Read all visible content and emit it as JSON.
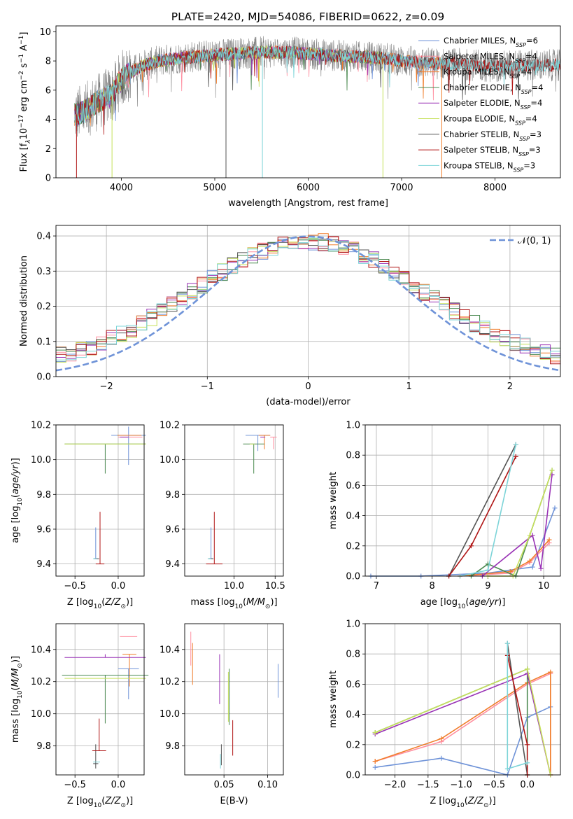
{
  "figure_title": "PLATE=2420, MJD=54086, FIBERID=0622, z=0.09",
  "palette": {
    "chabrier_miles": "#6f93d8",
    "salpeter_miles": "#ff8fa0",
    "kroupa_miles": "#f07d2a",
    "chabrier_elodie": "#4b8a50",
    "salpeter_elodie": "#9932b5",
    "kroupa_elodie": "#c6e05a",
    "chabrier_stelib": "#555555",
    "salpeter_stelib": "#b01515",
    "kroupa_stelib": "#7dd4d8",
    "grid": "#b0b0b0",
    "spectrum_data": "#808080"
  },
  "chart_data": [
    {
      "id": "spectrum",
      "type": "line",
      "title": "PLATE=2420, MJD=54086, FIBERID=0622, z=0.09",
      "xlabel": "wavelength [Angstrom, rest frame]",
      "ylabel": "Flux [f_λ10^-17 erg cm^-2 s^-1 A^-1]",
      "xlim": [
        3300,
        8700
      ],
      "ylim": [
        0,
        10.4
      ],
      "xticks": [
        "4000",
        "5000",
        "6000",
        "7000",
        "8000"
      ],
      "yticks": [
        "0",
        "2",
        "4",
        "6",
        "8",
        "10"
      ],
      "grid": false,
      "legend_position": "right",
      "legend": [
        {
          "name": "Chabrier MILES, N",
          "sub": "SSP",
          "suffix": "=6",
          "key": "chabrier_miles"
        },
        {
          "name": "Salpeter MILES, N",
          "sub": "SSP",
          "suffix": "=4",
          "key": "salpeter_miles"
        },
        {
          "name": "Kroupa MILES, N",
          "sub": "SSP",
          "suffix": "=4",
          "key": "kroupa_miles"
        },
        {
          "name": "Chabrier ELODIE, N",
          "sub": "SSP",
          "suffix": "=4",
          "key": "chabrier_elodie"
        },
        {
          "name": "Salpeter ELODIE, N",
          "sub": "SSP",
          "suffix": "=4",
          "key": "salpeter_elodie"
        },
        {
          "name": "Kroupa ELODIE, N",
          "sub": "SSP",
          "suffix": "=4",
          "key": "kroupa_elodie"
        },
        {
          "name": "Chabrier STELIB, N",
          "sub": "SSP",
          "suffix": "=3",
          "key": "chabrier_stelib"
        },
        {
          "name": "Salpeter STELIB, N",
          "sub": "SSP",
          "suffix": "=3",
          "key": "salpeter_stelib"
        },
        {
          "name": "Kroupa STELIB, N",
          "sub": "SSP",
          "suffix": "=3",
          "key": "kroupa_stelib"
        }
      ],
      "continuum": {
        "x": [
          3500,
          3600,
          3700,
          3800,
          3900,
          4000,
          4100,
          4200,
          4400,
          4600,
          4800,
          5000,
          5200,
          5500,
          5800,
          6000,
          6200,
          6500,
          6800,
          7000,
          7200,
          7400,
          7600,
          7800,
          8000,
          8200,
          8400
        ],
        "y": [
          4.3,
          4.5,
          5.0,
          5.4,
          5.7,
          6.8,
          7.2,
          7.6,
          8.0,
          8.2,
          8.3,
          8.4,
          8.5,
          8.6,
          8.6,
          8.5,
          8.4,
          8.3,
          8.2,
          8.0,
          7.9,
          7.8,
          7.8,
          7.7,
          7.6,
          7.7,
          7.7
        ]
      },
      "model_wavelength_max": {
        "miles": 7430,
        "elodie": 6800,
        "stelib": 8750
      }
    },
    {
      "id": "residuals",
      "type": "area",
      "xlabel": "(data-model)/error",
      "ylabel": "Normed distribution",
      "xlim": [
        -2.5,
        2.5
      ],
      "ylim": [
        0,
        0.43
      ],
      "xticks": [
        "−2",
        "−1",
        "0",
        "1",
        "2"
      ],
      "yticks": [
        "0.0",
        "0.1",
        "0.2",
        "0.3",
        "0.4"
      ],
      "grid": true,
      "legend_position": "top-right",
      "legend_label": "𝒩(0, 1)",
      "bin_width": 0.1,
      "bin_start": -2.5,
      "reference_curve": {
        "name": "𝒩(0, 1)",
        "key": "chabrier_miles",
        "mean": 0,
        "sigma": 1
      }
    },
    {
      "id": "age_vs_Z",
      "type": "scatter",
      "xlabel": "Z [log10(Z/Z⊙)]",
      "ylabel": "age [log10(age/yr)]",
      "xlim": [
        -0.72,
        0.3
      ],
      "ylim": [
        9.33,
        10.2
      ],
      "xticks": [
        "−0.5",
        "0.0"
      ],
      "yticks": [
        "9.4",
        "9.6",
        "9.8",
        "10.0",
        "10.2"
      ],
      "grid": true,
      "points": [
        {
          "key": "chabrier_miles",
          "x": -0.26,
          "y": 9.43,
          "xerr": 0.02,
          "yerr": [
            0.0,
            0.18
          ]
        },
        {
          "key": "chabrier_miles",
          "x": 0.12,
          "y": 10.14,
          "xerr": 0.2,
          "yerr": [
            0.17,
            0.05
          ]
        },
        {
          "key": "salpeter_miles",
          "x": 0.14,
          "y": 10.13,
          "xerr": 0.14,
          "yerr": [
            0.0,
            0.0
          ]
        },
        {
          "key": "kroupa_miles",
          "x": 0.13,
          "y": 10.14,
          "xerr": 0.14,
          "yerr": [
            0.0,
            0.0
          ]
        },
        {
          "key": "chabrier_elodie",
          "x": -0.15,
          "y": 10.09,
          "xerr": 0.47,
          "yerr": [
            0.17,
            0.0
          ]
        },
        {
          "key": "salpeter_elodie",
          "x": 0.07,
          "y": 10.13,
          "xerr": 0.05,
          "yerr": [
            0.0,
            0.0
          ]
        },
        {
          "key": "kroupa_elodie",
          "x": -0.15,
          "y": 10.09,
          "xerr": 0.47,
          "yerr": [
            0.0,
            0.0
          ]
        },
        {
          "key": "chabrier_stelib",
          "x": -0.25,
          "y": 9.43,
          "xerr": 0.03,
          "yerr": [
            0.0,
            0.0
          ]
        },
        {
          "key": "salpeter_stelib",
          "x": -0.21,
          "y": 9.4,
          "xerr": 0.05,
          "yerr": [
            0.0,
            0.3
          ]
        },
        {
          "key": "kroupa_stelib",
          "x": -0.27,
          "y": 9.43,
          "xerr": 0.02,
          "yerr": [
            0.0,
            0.0
          ]
        }
      ]
    },
    {
      "id": "age_vs_mass",
      "type": "scatter",
      "xlabel": "mass [log10(M/M⊙)]",
      "ylabel": "",
      "xlim": [
        9.4,
        10.6
      ],
      "ylim": [
        9.33,
        10.2
      ],
      "xticks": [
        "10.0",
        "10.5"
      ],
      "yticks": [
        "9.4",
        "9.6",
        "9.8",
        "10.0",
        "10.2"
      ],
      "grid": true,
      "points": [
        {
          "key": "chabrier_miles",
          "x": 9.72,
          "y": 9.43,
          "xerr": 0.02,
          "yerr": [
            0.0,
            0.18
          ]
        },
        {
          "key": "chabrier_miles",
          "x": 10.29,
          "y": 10.14,
          "xerr": 0.15,
          "yerr": [
            0.09,
            0.0
          ]
        },
        {
          "key": "salpeter_miles",
          "x": 10.48,
          "y": 10.13,
          "xerr": 0.04,
          "yerr": [
            0.07,
            0.0
          ]
        },
        {
          "key": "kroupa_miles",
          "x": 10.37,
          "y": 10.14,
          "xerr": 0.07,
          "yerr": [
            0.08,
            0.0
          ]
        },
        {
          "key": "chabrier_elodie",
          "x": 10.24,
          "y": 10.09,
          "xerr": 0.13,
          "yerr": [
            0.17,
            0.0
          ]
        },
        {
          "key": "salpeter_elodie",
          "x": 10.35,
          "y": 10.13,
          "xerr": 0.03,
          "yerr": [
            0.0,
            0.0
          ]
        },
        {
          "key": "kroupa_elodie",
          "x": 10.22,
          "y": 10.09,
          "xerr": 0.03,
          "yerr": [
            0.0,
            0.0
          ]
        },
        {
          "key": "chabrier_stelib",
          "x": 9.72,
          "y": 9.43,
          "xerr": 0.03,
          "yerr": [
            0.0,
            0.0
          ]
        },
        {
          "key": "salpeter_stelib",
          "x": 9.76,
          "y": 9.4,
          "xerr": 0.1,
          "yerr": [
            0.0,
            0.3
          ]
        },
        {
          "key": "kroupa_stelib",
          "x": 9.7,
          "y": 9.43,
          "xerr": 0.02,
          "yerr": [
            0.0,
            0.0
          ]
        }
      ]
    },
    {
      "id": "massweight_vs_age",
      "type": "line",
      "xlabel": "age [log10(age/yr)]",
      "ylabel": "mass weight",
      "xlim": [
        6.8,
        10.3
      ],
      "ylim": [
        0.0,
        1.0
      ],
      "xticks": [
        "7",
        "8",
        "9",
        "10"
      ],
      "yticks": [
        "0.0",
        "0.2",
        "0.4",
        "0.6",
        "0.8",
        "1.0"
      ],
      "grid": true,
      "series": [
        {
          "key": "chabrier_miles",
          "x": [
            6.9,
            7.8,
            9.0,
            9.8,
            10.2
          ],
          "y": [
            0.0,
            0.0,
            0.02,
            0.06,
            0.45
          ]
        },
        {
          "key": "salpeter_miles",
          "x": [
            8.5,
            9.4,
            9.75,
            10.1
          ],
          "y": [
            0.0,
            0.02,
            0.09,
            0.22
          ]
        },
        {
          "key": "kroupa_miles",
          "x": [
            8.5,
            9.4,
            9.75,
            10.1
          ],
          "y": [
            0.0,
            0.03,
            0.1,
            0.24
          ]
        },
        {
          "key": "chabrier_elodie",
          "x": [
            8.7,
            9.0,
            9.5,
            10.15
          ],
          "y": [
            0.0,
            0.08,
            0.0,
            0.7
          ]
        },
        {
          "key": "salpeter_elodie",
          "x": [
            8.9,
            9.8,
            9.95,
            10.15
          ],
          "y": [
            0.0,
            0.27,
            0.05,
            0.67
          ]
        },
        {
          "key": "kroupa_elodie",
          "x": [
            9.0,
            9.45,
            9.75,
            10.15
          ],
          "y": [
            0.0,
            0.0,
            0.27,
            0.7
          ]
        },
        {
          "key": "chabrier_stelib",
          "x": [
            8.3,
            9.5
          ],
          "y": [
            0.0,
            0.87
          ]
        },
        {
          "key": "salpeter_stelib",
          "x": [
            8.3,
            8.7,
            9.5
          ],
          "y": [
            0.0,
            0.2,
            0.79
          ]
        },
        {
          "key": "kroupa_stelib",
          "x": [
            8.5,
            9.0,
            9.5
          ],
          "y": [
            0.0,
            0.04,
            0.87
          ]
        }
      ]
    },
    {
      "id": "mass_vs_Z",
      "type": "scatter",
      "xlabel": "Z [log10(Z/Z⊙)]",
      "ylabel": "mass [log10(M/M⊙)]",
      "xlim": [
        -0.72,
        0.3
      ],
      "ylim": [
        9.62,
        10.56
      ],
      "xticks": [
        "−0.5",
        "0.0"
      ],
      "yticks": [
        "9.8",
        "10.0",
        "10.2",
        "10.4"
      ],
      "grid": true,
      "points": [
        {
          "key": "chabrier_miles",
          "x": -0.26,
          "y": 9.69,
          "xerr": 0.02,
          "yerr": [
            0.0,
            0.0
          ]
        },
        {
          "key": "chabrier_miles",
          "x": 0.12,
          "y": 10.28,
          "xerr": 0.12,
          "yerr": [
            0.19,
            0.0
          ]
        },
        {
          "key": "salpeter_miles",
          "x": 0.12,
          "y": 10.48,
          "xerr": 0.1,
          "yerr": [
            0.0,
            0.0
          ]
        },
        {
          "key": "kroupa_miles",
          "x": 0.13,
          "y": 10.37,
          "xerr": 0.08,
          "yerr": [
            0.2,
            0.0
          ]
        },
        {
          "key": "chabrier_elodie",
          "x": -0.15,
          "y": 10.24,
          "xerr": 0.5,
          "yerr": [
            0.3,
            0.0
          ]
        },
        {
          "key": "salpeter_elodie",
          "x": -0.15,
          "y": 10.35,
          "xerr": 0.47,
          "yerr": [
            0.0,
            0.02
          ]
        },
        {
          "key": "kroupa_elodie",
          "x": -0.15,
          "y": 10.22,
          "xerr": 0.47,
          "yerr": [
            0.0,
            0.0
          ]
        },
        {
          "key": "chabrier_stelib",
          "x": -0.26,
          "y": 9.69,
          "xerr": 0.03,
          "yerr": [
            0.03,
            0.12
          ]
        },
        {
          "key": "salpeter_stelib",
          "x": -0.22,
          "y": 9.77,
          "xerr": 0.08,
          "yerr": [
            0.0,
            0.2
          ]
        },
        {
          "key": "kroupa_stelib",
          "x": -0.25,
          "y": 9.7,
          "xerr": 0.04,
          "yerr": [
            0.0,
            0.0
          ]
        }
      ]
    },
    {
      "id": "mass_vs_ebv",
      "type": "scatter",
      "xlabel": "E(B-V)",
      "ylabel": "",
      "xlim": [
        0.005,
        0.118
      ],
      "ylim": [
        9.62,
        10.56
      ],
      "xticks": [
        "0.05",
        "0.10"
      ],
      "yticks": [
        "9.8",
        "10.0",
        "10.2",
        "10.4"
      ],
      "grid": true,
      "points": [
        {
          "key": "chabrier_miles",
          "x": 0.112,
          "y": 10.2,
          "yerr": [
            0.1,
            0.11
          ]
        },
        {
          "key": "salpeter_miles",
          "x": 0.012,
          "y": 10.4,
          "yerr": [
            0.1,
            0.11
          ]
        },
        {
          "key": "kroupa_miles",
          "x": 0.014,
          "y": 10.31,
          "yerr": [
            0.13,
            0.13
          ]
        },
        {
          "key": "chabrier_elodie",
          "x": 0.056,
          "y": 10.1,
          "yerr": [
            0.17,
            0.18
          ]
        },
        {
          "key": "salpeter_elodie",
          "x": 0.045,
          "y": 10.2,
          "yerr": [
            0.14,
            0.17
          ]
        },
        {
          "key": "kroupa_elodie",
          "x": 0.055,
          "y": 10.1,
          "yerr": [
            0.15,
            0.16
          ]
        },
        {
          "key": "chabrier_stelib",
          "x": 0.047,
          "y": 9.73,
          "yerr": [
            0.05,
            0.08
          ]
        },
        {
          "key": "salpeter_stelib",
          "x": 0.06,
          "y": 9.85,
          "yerr": [
            0.11,
            0.11
          ]
        },
        {
          "key": "kroupa_stelib",
          "x": 0.046,
          "y": 9.7,
          "yerr": [
            0.04,
            0.05
          ]
        }
      ]
    },
    {
      "id": "massweight_vs_Z",
      "type": "line",
      "xlabel": "Z [log10(Z/Z⊙)]",
      "ylabel": "mass weight",
      "xlim": [
        -2.45,
        0.5
      ],
      "ylim": [
        0.0,
        1.0
      ],
      "xticks": [
        "−2.0",
        "−1.5",
        "−1.0",
        "−0.5",
        "0.0"
      ],
      "yticks": [
        "0.0",
        "0.2",
        "0.4",
        "0.6",
        "0.8",
        "1.0"
      ],
      "grid": true,
      "series": [
        {
          "key": "chabrier_miles",
          "x": [
            -2.3,
            -1.3,
            -0.3,
            0.0,
            0.35
          ],
          "y": [
            0.05,
            0.11,
            0.0,
            0.38,
            0.45
          ]
        },
        {
          "key": "salpeter_miles",
          "x": [
            -2.3,
            -1.3,
            0.0,
            0.35,
            0.35
          ],
          "y": [
            0.09,
            0.22,
            0.6,
            0.67,
            0.0
          ]
        },
        {
          "key": "kroupa_miles",
          "x": [
            -2.3,
            -1.3,
            0.0,
            0.35,
            0.35
          ],
          "y": [
            0.09,
            0.24,
            0.61,
            0.68,
            0.0
          ]
        },
        {
          "key": "chabrier_elodie",
          "x": [
            -2.3,
            0.0,
            0.0
          ],
          "y": [
            0.28,
            0.7,
            0.0
          ]
        },
        {
          "key": "salpeter_elodie",
          "x": [
            -2.3,
            0.0,
            0.35
          ],
          "y": [
            0.27,
            0.67,
            0.0
          ]
        },
        {
          "key": "kroupa_elodie",
          "x": [
            -2.3,
            0.0,
            0.35
          ],
          "y": [
            0.28,
            0.7,
            0.0
          ]
        },
        {
          "key": "chabrier_stelib",
          "x": [
            -0.3,
            0.0
          ],
          "y": [
            0.87,
            0.0
          ]
        },
        {
          "key": "salpeter_stelib",
          "x": [
            -0.3,
            0.0,
            0.0
          ],
          "y": [
            0.79,
            0.2,
            0.0
          ]
        },
        {
          "key": "kroupa_stelib",
          "x": [
            -0.3,
            -0.3,
            0.0
          ],
          "y": [
            0.87,
            0.04,
            0.08
          ]
        }
      ]
    }
  ]
}
